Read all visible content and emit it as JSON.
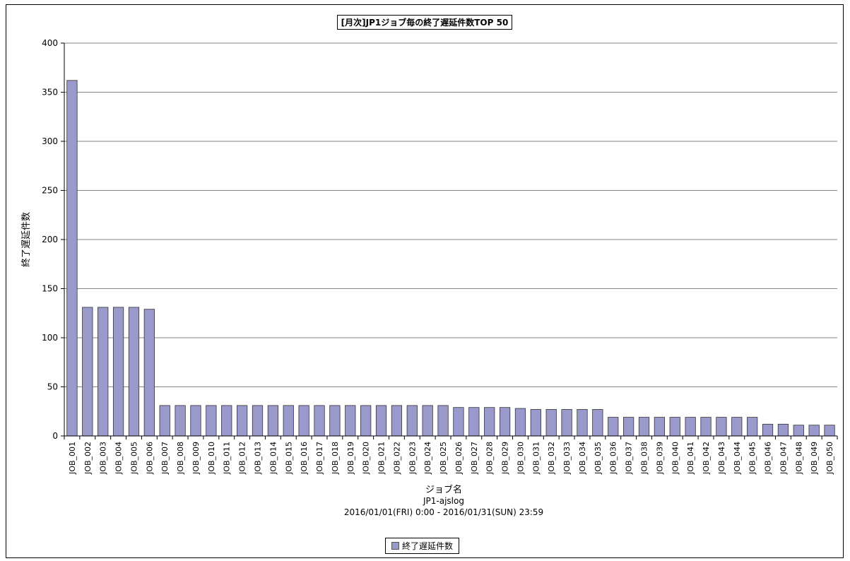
{
  "chart_data": {
    "type": "bar",
    "title": "[月次]JP1ジョブ毎の終了遅延件数TOP 50",
    "xlabel": "ジョブ名",
    "xlabel_sub": [
      "JP1-ajslog",
      "2016/01/01(FRI) 0:00 - 2016/01/31(SUN) 23:59"
    ],
    "ylabel": "終了遅延件数",
    "ylim": [
      0,
      400
    ],
    "yticks": [
      0,
      50,
      100,
      150,
      200,
      250,
      300,
      350,
      400
    ],
    "grid": true,
    "legend_position": "bottom",
    "bar_color": "#9999cc",
    "categories": [
      "JOB_001",
      "JOB_002",
      "JOB_003",
      "JOB_004",
      "JOB_005",
      "JOB_006",
      "JOB_007",
      "JOB_008",
      "JOB_009",
      "JOB_010",
      "JOB_011",
      "JOB_012",
      "JOB_013",
      "JOB_014",
      "JOB_015",
      "JOB_016",
      "JOB_017",
      "JOB_018",
      "JOB_019",
      "JOB_020",
      "JOB_021",
      "JOB_022",
      "JOB_023",
      "JOB_024",
      "JOB_025",
      "JOB_026",
      "JOB_027",
      "JOB_028",
      "JOB_029",
      "JOB_030",
      "JOB_031",
      "JOB_032",
      "JOB_033",
      "JOB_034",
      "JOB_035",
      "JOB_036",
      "JOB_037",
      "JOB_038",
      "JOB_039",
      "JOB_040",
      "JOB_041",
      "JOB_042",
      "JOB_043",
      "JOB_044",
      "JOB_045",
      "JOB_046",
      "JOB_047",
      "JOB_048",
      "JOB_049",
      "JOB_050"
    ],
    "series": [
      {
        "name": "終了遅延件数",
        "values": [
          362,
          131,
          131,
          131,
          131,
          129,
          31,
          31,
          31,
          31,
          31,
          31,
          31,
          31,
          31,
          31,
          31,
          31,
          31,
          31,
          31,
          31,
          31,
          31,
          31,
          29,
          29,
          29,
          29,
          28,
          27,
          27,
          27,
          27,
          27,
          19,
          19,
          19,
          19,
          19,
          19,
          19,
          19,
          19,
          19,
          12,
          12,
          11,
          11,
          11
        ]
      }
    ]
  }
}
